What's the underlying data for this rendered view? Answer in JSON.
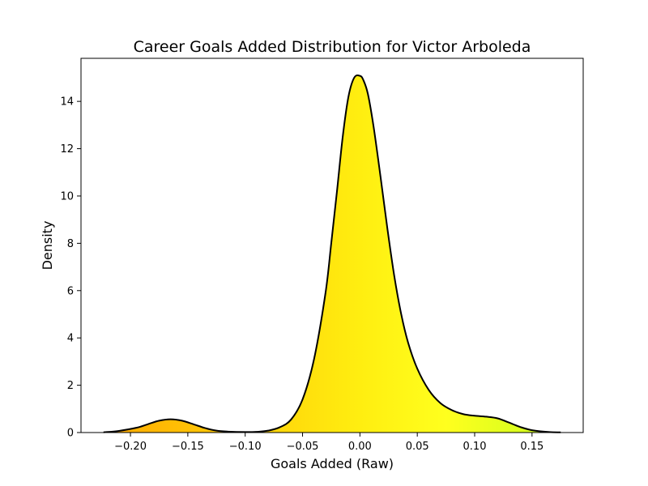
{
  "chart_data": {
    "type": "area",
    "title": "Career Goals Added Distribution for Victor Arboleda",
    "xlabel": "Goals Added (Raw)",
    "ylabel": "Density",
    "xlim": [
      -0.2431,
      0.1946
    ],
    "ylim": [
      0,
      15.82
    ],
    "xticks": [
      -0.2,
      -0.15,
      -0.1,
      -0.05,
      0.0,
      0.05,
      0.1,
      0.15
    ],
    "xtick_labels": [
      "−0.20",
      "−0.15",
      "−0.10",
      "−0.05",
      "0.00",
      "0.05",
      "0.10",
      "0.15"
    ],
    "yticks": [
      0,
      2,
      4,
      6,
      8,
      10,
      12,
      14
    ],
    "ytick_labels": [
      "0",
      "2",
      "4",
      "6",
      "8",
      "10",
      "12",
      "14"
    ],
    "grid": false,
    "line_color": "#000000",
    "fill_gradient": [
      "#ffaa00",
      "#ffff1e",
      "#c8ff1e"
    ],
    "series": [
      {
        "x": [
          -0.2235,
          -0.21,
          -0.195,
          -0.185,
          -0.175,
          -0.165,
          -0.155,
          -0.145,
          -0.135,
          -0.125,
          -0.115,
          -0.1,
          -0.09,
          -0.08,
          -0.07,
          -0.06,
          -0.05,
          -0.04,
          -0.03,
          -0.025,
          -0.02,
          -0.015,
          -0.01,
          -0.005,
          0.0,
          0.003,
          0.007,
          0.012,
          0.018,
          0.024,
          0.03,
          0.036,
          0.042,
          0.05,
          0.06,
          0.07,
          0.08,
          0.09,
          0.1,
          0.11,
          0.12,
          0.13,
          0.14,
          0.15,
          0.165,
          0.175
        ],
        "y": [
          0.01,
          0.07,
          0.2,
          0.35,
          0.5,
          0.56,
          0.5,
          0.35,
          0.19,
          0.08,
          0.04,
          0.02,
          0.03,
          0.08,
          0.22,
          0.55,
          1.4,
          3.1,
          5.9,
          8.0,
          10.2,
          12.5,
          14.2,
          15.0,
          15.08,
          14.9,
          14.3,
          12.9,
          10.8,
          8.6,
          6.6,
          5.0,
          3.8,
          2.7,
          1.8,
          1.25,
          0.95,
          0.78,
          0.71,
          0.67,
          0.6,
          0.42,
          0.23,
          0.1,
          0.02,
          0.01
        ]
      }
    ]
  }
}
